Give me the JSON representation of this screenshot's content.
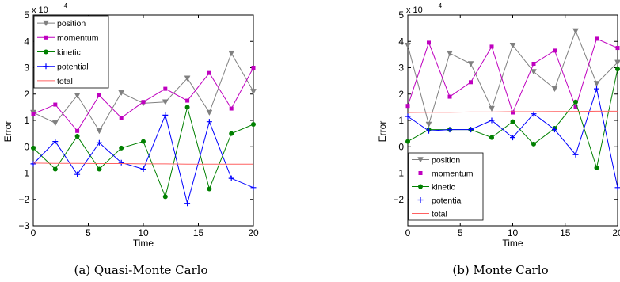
{
  "chart_data": [
    {
      "type": "line",
      "caption": "(a)  Quasi-Monte Carlo",
      "xlabel": "Time",
      "ylabel": "Error",
      "scale_label": "x 10",
      "scale_exponent": "−4",
      "xlim": [
        0,
        20
      ],
      "ylim": [
        -3,
        5
      ],
      "xticks": [
        "0",
        "5",
        "10",
        "15",
        "20"
      ],
      "yticks": [
        "−3",
        "−2",
        "−1",
        "0",
        "1",
        "2",
        "3",
        "4",
        "5"
      ],
      "legend_position": "top-left",
      "x": [
        0,
        2,
        4,
        6,
        8,
        10,
        12,
        14,
        16,
        18,
        20
      ],
      "series": [
        {
          "name": "position",
          "color": "#808080",
          "marker": "triangle-down",
          "values": [
            1.3,
            0.9,
            1.95,
            0.6,
            2.05,
            1.65,
            1.7,
            2.6,
            1.3,
            3.55,
            2.1
          ]
        },
        {
          "name": "momentum",
          "color": "#bf00bf",
          "marker": "square",
          "values": [
            1.25,
            1.6,
            0.6,
            1.95,
            1.1,
            1.7,
            2.2,
            1.75,
            2.8,
            1.45,
            3.0
          ]
        },
        {
          "name": "kinetic",
          "color": "#008000",
          "marker": "circle",
          "values": [
            -0.05,
            -0.85,
            0.4,
            -0.85,
            -0.05,
            0.2,
            -1.9,
            1.5,
            -1.6,
            0.5,
            0.85
          ]
        },
        {
          "name": "potential",
          "color": "#0000ff",
          "marker": "plus",
          "values": [
            -0.65,
            0.2,
            -1.05,
            0.15,
            -0.6,
            -0.85,
            1.2,
            -2.15,
            0.95,
            -1.2,
            -1.55
          ]
        },
        {
          "name": "total",
          "color": "#ff6060",
          "marker": "none",
          "values": [
            -0.62,
            -0.63,
            -0.63,
            -0.64,
            -0.64,
            -0.65,
            -0.65,
            -0.66,
            -0.66,
            -0.66,
            -0.66
          ]
        }
      ]
    },
    {
      "type": "line",
      "caption": "(b)  Monte Carlo",
      "xlabel": "Time",
      "ylabel": "Error",
      "scale_label": "x 10",
      "scale_exponent": "−4",
      "xlim": [
        0,
        20
      ],
      "ylim": [
        -3,
        5
      ],
      "xticks": [
        "0",
        "5",
        "10",
        "15",
        "20"
      ],
      "yticks": [
        "−2",
        "−1",
        "0",
        "1",
        "2",
        "3",
        "4",
        "5"
      ],
      "legend_position": "bottom-left",
      "x": [
        0,
        2,
        4,
        6,
        8,
        10,
        12,
        14,
        16,
        18,
        20
      ],
      "series": [
        {
          "name": "position",
          "color": "#808080",
          "marker": "triangle-down",
          "values": [
            3.85,
            0.85,
            3.55,
            3.15,
            1.45,
            3.85,
            2.85,
            2.2,
            4.4,
            2.4,
            3.2
          ]
        },
        {
          "name": "momentum",
          "color": "#bf00bf",
          "marker": "square",
          "values": [
            1.55,
            3.95,
            1.9,
            2.45,
            3.8,
            1.3,
            3.15,
            3.65,
            1.5,
            4.1,
            3.75
          ]
        },
        {
          "name": "kinetic",
          "color": "#008000",
          "marker": "circle",
          "values": [
            0.2,
            0.65,
            0.65,
            0.65,
            0.35,
            0.95,
            0.1,
            0.7,
            1.7,
            -0.8,
            2.95
          ]
        },
        {
          "name": "potential",
          "color": "#0000ff",
          "marker": "plus",
          "values": [
            1.15,
            0.6,
            0.65,
            0.65,
            1.0,
            0.35,
            1.25,
            0.65,
            -0.3,
            2.2,
            -1.55
          ]
        },
        {
          "name": "total",
          "color": "#ff6060",
          "marker": "none",
          "values": [
            1.3,
            1.31,
            1.31,
            1.32,
            1.32,
            1.33,
            1.33,
            1.34,
            1.34,
            1.35,
            1.35
          ]
        }
      ]
    }
  ]
}
